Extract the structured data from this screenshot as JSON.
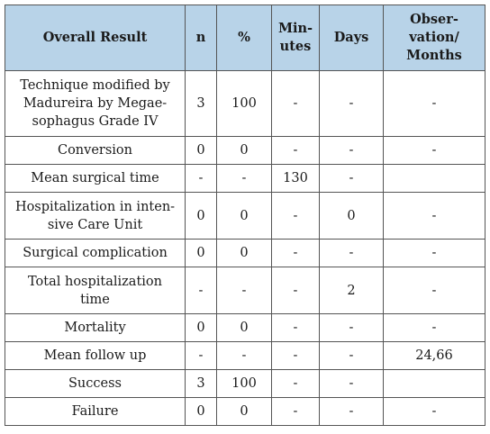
{
  "table": {
    "headers": [
      "Overall Result",
      "n",
      "%",
      "Min-\nutes",
      "Days",
      "Obser-\nvation/\nMonths"
    ],
    "rows": [
      [
        "Technique modified by\nMadureira by Megae-\nsophagus Grade IV",
        "3",
        "100",
        "-",
        "-",
        "-"
      ],
      [
        "Conversion",
        "0",
        "0",
        "-",
        "-",
        "-"
      ],
      [
        "Mean surgical time",
        "-",
        "-",
        "130",
        "-",
        ""
      ],
      [
        "Hospitalization in inten-\nsive Care Unit",
        "0",
        "0",
        "-",
        "0",
        "-"
      ],
      [
        "Surgical complication",
        "0",
        "0",
        "-",
        "-",
        "-"
      ],
      [
        "Total hospitalization\ntime",
        "-",
        "-",
        "-",
        "2",
        "-"
      ],
      [
        "Mortality",
        "0",
        "0",
        "-",
        "-",
        "-"
      ],
      [
        "Mean follow up",
        "-",
        "-",
        "-",
        "-",
        "24,66"
      ],
      [
        "Success",
        "3",
        "100",
        "-",
        "-",
        ""
      ],
      [
        "Failure",
        "0",
        "0",
        "-",
        "-",
        "-"
      ]
    ]
  }
}
